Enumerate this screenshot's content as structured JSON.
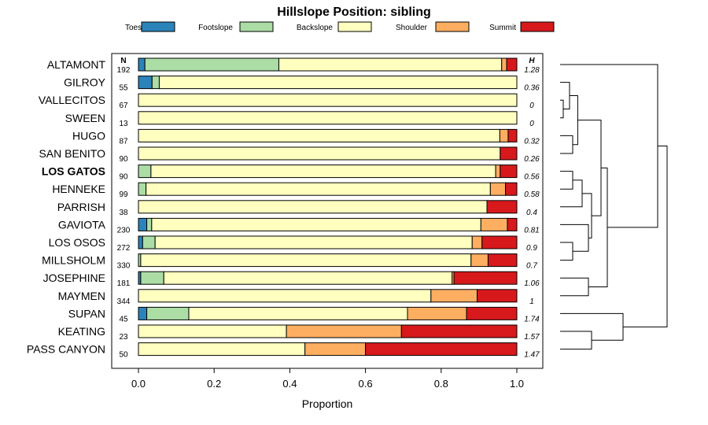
{
  "chart_data": {
    "type": "bar",
    "stacked": true,
    "orientation": "horizontal",
    "title": "Hillslope Position: sibling",
    "xlabel": "Proportion",
    "xlim": [
      0,
      1
    ],
    "xticks": [
      "0.0",
      "0.2",
      "0.4",
      "0.6",
      "0.8",
      "1.0"
    ],
    "n_header": "N",
    "h_header": "H",
    "highlight_category": "LOS GATOS",
    "legend_position": "top",
    "series": [
      {
        "name": "Toeslope",
        "color": "#2B83BA"
      },
      {
        "name": "Footslope",
        "color": "#ABDDA4"
      },
      {
        "name": "Backslope",
        "color": "#FFFFBF"
      },
      {
        "name": "Shoulder",
        "color": "#FDAE61"
      },
      {
        "name": "Summit",
        "color": "#D7191C"
      }
    ],
    "categories": [
      {
        "name": "ALTAMONT",
        "n": "192",
        "h": "1.28",
        "values": [
          0.017,
          0.354,
          0.589,
          0.013,
          0.027
        ]
      },
      {
        "name": "GILROY",
        "n": "55",
        "h": "0.36",
        "values": [
          0.036,
          0.019,
          0.945,
          0,
          0
        ]
      },
      {
        "name": "VALLECITOS",
        "n": "67",
        "h": "0",
        "values": [
          0,
          0,
          1.0,
          0,
          0
        ]
      },
      {
        "name": "SWEEN",
        "n": "13",
        "h": "0",
        "values": [
          0,
          0,
          1.0,
          0,
          0
        ]
      },
      {
        "name": "HUGO",
        "n": "87",
        "h": "0.32",
        "values": [
          0,
          0,
          0.955,
          0.022,
          0.023
        ]
      },
      {
        "name": "SAN BENITO",
        "n": "90",
        "h": "0.26",
        "values": [
          0,
          0,
          0.956,
          0,
          0.044
        ]
      },
      {
        "name": "LOS GATOS",
        "n": "90",
        "h": "0.56",
        "values": [
          0,
          0.033,
          0.911,
          0.012,
          0.044
        ]
      },
      {
        "name": "HENNEKE",
        "n": "99",
        "h": "0.58",
        "values": [
          0,
          0.02,
          0.91,
          0.04,
          0.03
        ]
      },
      {
        "name": "PARRISH",
        "n": "38",
        "h": "0.4",
        "values": [
          0,
          0,
          0.921,
          0,
          0.079
        ]
      },
      {
        "name": "GAVIOTA",
        "n": "230",
        "h": "0.81",
        "values": [
          0.022,
          0.013,
          0.87,
          0.07,
          0.025
        ]
      },
      {
        "name": "LOS OSOS",
        "n": "272",
        "h": "0.9",
        "values": [
          0.011,
          0.033,
          0.838,
          0.026,
          0.092
        ]
      },
      {
        "name": "MILLSHOLM",
        "n": "330",
        "h": "0.7",
        "values": [
          0,
          0.006,
          0.873,
          0.045,
          0.076
        ]
      },
      {
        "name": "JOSEPHINE",
        "n": "181",
        "h": "1.06",
        "values": [
          0.006,
          0.061,
          0.762,
          0.005,
          0.166
        ]
      },
      {
        "name": "MAYMEN",
        "n": "344",
        "h": "1",
        "values": [
          0,
          0,
          0.773,
          0.122,
          0.105
        ]
      },
      {
        "name": "SUPAN",
        "n": "45",
        "h": "1.74",
        "values": [
          0.022,
          0.111,
          0.578,
          0.156,
          0.133
        ]
      },
      {
        "name": "KEATING",
        "n": "23",
        "h": "1.57",
        "values": [
          0,
          0,
          0.391,
          0.304,
          0.305
        ]
      },
      {
        "name": "PASS CANYON",
        "n": "50",
        "h": "1.47",
        "values": [
          0,
          0,
          0.44,
          0.16,
          0.4
        ]
      }
    ],
    "dendrogram": {
      "merges": [
        {
          "a": 2,
          "b": 3,
          "height": 0.05
        },
        {
          "a": "m0",
          "b": 1,
          "height": 0.15
        },
        {
          "a": 4,
          "b": 5,
          "height": 0.2
        },
        {
          "a": "m1",
          "b": "m2",
          "height": 0.28
        },
        {
          "a": 6,
          "b": 7,
          "height": 0.2
        },
        {
          "a": 8,
          "b": "m4",
          "height": 0.35
        },
        {
          "a": 10,
          "b": 11,
          "height": 0.2
        },
        {
          "a": 9,
          "b": "m6",
          "height": 0.45
        },
        {
          "a": "m5",
          "b": "m7",
          "height": 0.5
        },
        {
          "a": "m3",
          "b": "m8",
          "height": 0.65
        },
        {
          "a": 12,
          "b": 13,
          "height": 0.45
        },
        {
          "a": "m9",
          "b": "m10",
          "height": 0.75
        },
        {
          "a": "m11",
          "b": 0,
          "height": 1.55
        },
        {
          "a": 15,
          "b": 16,
          "height": 0.5
        },
        {
          "a": 14,
          "b": "m13",
          "height": 1.0
        },
        {
          "a": "m12",
          "b": "m14",
          "height": 1.7
        }
      ]
    }
  }
}
